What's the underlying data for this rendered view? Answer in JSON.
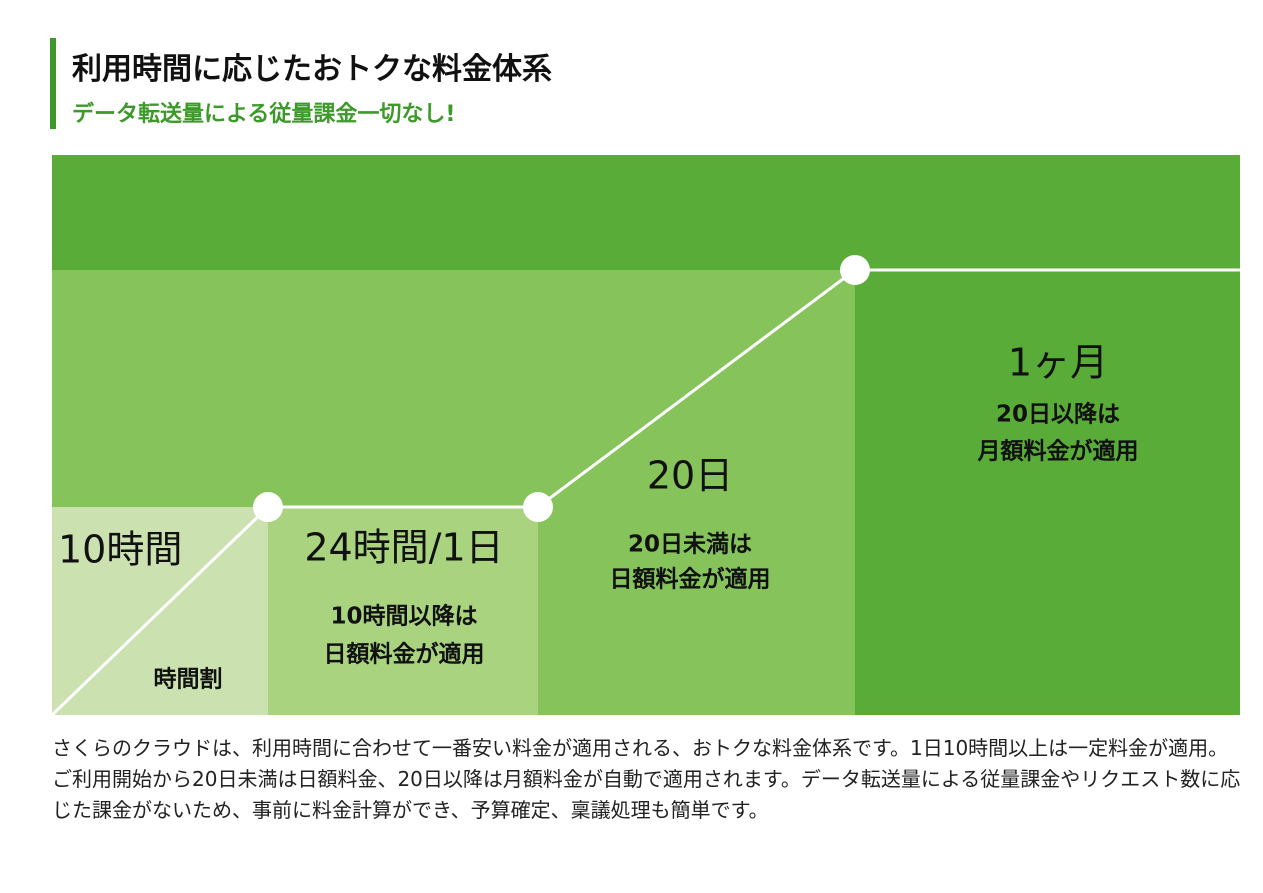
{
  "header": {
    "title": "利用時間に応じたおトクな料金体系",
    "subtitle": "データ転送量による従量課金一切なし!"
  },
  "stages": [
    {
      "title": "10時間",
      "note_lines": [
        "時間割"
      ]
    },
    {
      "title": "24時間/1日",
      "note_lines": [
        "10時間以降は",
        "日額料金が適用"
      ]
    },
    {
      "title": "20日",
      "note_lines": [
        "20日未満は",
        "日額料金が適用"
      ]
    },
    {
      "title": "1ヶ月",
      "note_lines": [
        "20日以降は",
        "月額料金が適用"
      ]
    }
  ],
  "description": "さくらのクラウドは、利用時間に合わせて一番安い料金が適用される、おトクな料金体系です。1日10時間以上は一定料金が適用。ご利用開始から20日未満は日額料金、20日以降は月額料金が自動で適用されます。データ転送量による従量課金やリクエスト数に応じた課金がないため、事前に料金計算ができ、予算確定、稟議処理も簡単です。"
}
